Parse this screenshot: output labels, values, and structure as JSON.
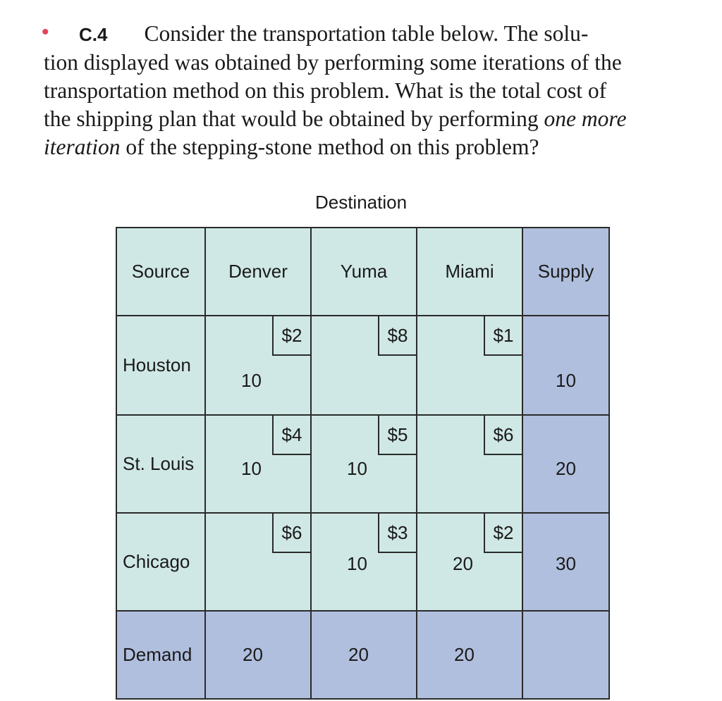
{
  "problem": {
    "bullet": "•",
    "number": "C.4",
    "line1": "Consider the transportation table below. The solu-",
    "line2": "tion displayed was obtained by performing some iterations of the",
    "line3": "transportation method on this problem. What is the total cost of",
    "line4_pre": "the shipping plan that would be obtained by performing ",
    "line4_em": "one more",
    "line5_em": "iteration",
    "line5_post": " of the stepping-stone method on this problem?"
  },
  "table": {
    "caption": "Destination",
    "headers": [
      "Source",
      "Denver",
      "Yuma",
      "Miami",
      "Supply"
    ],
    "rows": [
      {
        "source": "Houston",
        "costs": [
          "$2",
          "$8",
          "$1"
        ],
        "alloc": [
          "10",
          "",
          ""
        ],
        "supply": "10"
      },
      {
        "source": "St. Louis",
        "costs": [
          "$4",
          "$5",
          "$6"
        ],
        "alloc": [
          "10",
          "10",
          ""
        ],
        "supply": "20"
      },
      {
        "source": "Chicago",
        "costs": [
          "$6",
          "$3",
          "$2"
        ],
        "alloc": [
          "",
          "10",
          "20"
        ],
        "supply": "30"
      }
    ],
    "demand_label": "Demand",
    "demand": [
      "20",
      "20",
      "20"
    ]
  },
  "colors": {
    "cell_fill": "#cfe8e5",
    "header_fill": "#b1bfde",
    "bullet": "#e0455e"
  }
}
